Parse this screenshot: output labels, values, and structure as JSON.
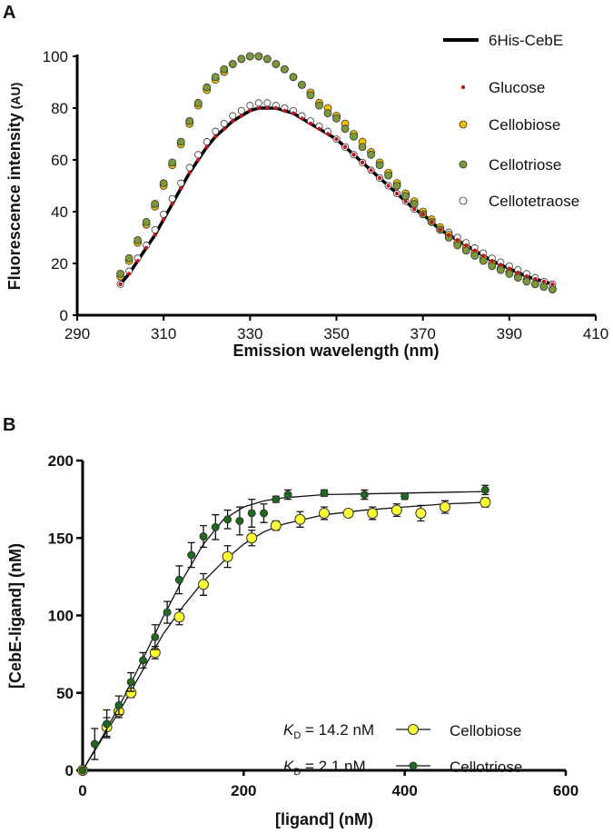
{
  "chart_data": [
    {
      "panel_label": "A",
      "type": "scatter",
      "xlabel": "Emission wavelength (nm)",
      "ylabel": "Fluorescence intensity",
      "ylabel_unit": "(AU)",
      "xlim": [
        290,
        410
      ],
      "ylim": [
        0,
        100
      ],
      "xticks": [
        "290",
        "310",
        "330",
        "350",
        "370",
        "390",
        "410"
      ],
      "yticks": [
        "0",
        "20",
        "40",
        "60",
        "80",
        "100"
      ],
      "grid": false,
      "legend_position": "top-right",
      "x": [
        300,
        302,
        304,
        306,
        308,
        310,
        312,
        314,
        316,
        318,
        320,
        322,
        324,
        326,
        328,
        330,
        332,
        334,
        336,
        338,
        340,
        342,
        344,
        346,
        348,
        350,
        352,
        354,
        356,
        358,
        360,
        362,
        364,
        366,
        368,
        370,
        372,
        374,
        376,
        378,
        380,
        382,
        384,
        386,
        388,
        390,
        392,
        394,
        396,
        398,
        400
      ],
      "series": [
        {
          "name": "6His-CebE",
          "style": "line",
          "color": "#000000",
          "values": [
            12,
            16,
            21,
            26,
            31,
            37,
            43,
            49,
            55,
            60,
            65,
            69,
            72,
            75,
            77,
            79,
            80,
            80,
            80,
            79,
            78,
            76,
            74,
            72,
            70,
            68,
            65,
            62,
            59,
            56,
            53,
            50,
            47,
            44,
            41,
            39,
            36,
            33,
            31,
            29,
            27,
            25,
            23,
            21,
            19.5,
            18,
            16.5,
            15,
            14,
            13,
            12
          ]
        },
        {
          "name": "Glucose",
          "style": "small-dot",
          "color": "#c0161b",
          "values": [
            12,
            16,
            21,
            26,
            31,
            37,
            43,
            49,
            55,
            60,
            65,
            69,
            72,
            75,
            77,
            79,
            80,
            80,
            80,
            79,
            78,
            76,
            74,
            72,
            70,
            68,
            65,
            62,
            59,
            56,
            53,
            50,
            47,
            44,
            41,
            39,
            36,
            33,
            31,
            29,
            27,
            25,
            23,
            21,
            19.5,
            18,
            16.5,
            15,
            14,
            13,
            12
          ]
        },
        {
          "name": "Cellobiose",
          "style": "dot",
          "color": "#f5c000",
          "values": [
            15,
            21,
            28,
            35,
            42,
            50,
            58,
            66,
            74,
            81,
            87,
            91,
            94,
            97,
            99,
            100,
            100,
            99,
            97,
            95,
            92,
            89,
            86,
            82,
            80,
            77,
            74,
            70,
            67,
            63,
            59,
            55,
            51,
            47,
            44,
            40,
            37,
            34,
            31,
            28,
            26,
            24,
            22,
            20,
            18,
            16.5,
            15,
            13.5,
            12,
            11,
            10
          ]
        },
        {
          "name": "Cellotriose",
          "style": "dot",
          "color": "#7a9a3a",
          "values": [
            16,
            22,
            29,
            36,
            43,
            51,
            59,
            67,
            75,
            82,
            88,
            92,
            95,
            97,
            99,
            100,
            100,
            99,
            97,
            95,
            92,
            89,
            85,
            81,
            78,
            76,
            72,
            69,
            65,
            62,
            58,
            54,
            50,
            46,
            43,
            39,
            36,
            33,
            30,
            27,
            25,
            23,
            21,
            19,
            17.5,
            16,
            14.5,
            13,
            12,
            11,
            10
          ]
        },
        {
          "name": "Cellotetraose",
          "style": "open-dot",
          "color": "#ffffff",
          "values": [
            12,
            17,
            22,
            27,
            33,
            39,
            45,
            51,
            57,
            62,
            67,
            71,
            74,
            77,
            79,
            81,
            82,
            82,
            81,
            80,
            79,
            77,
            75,
            73,
            71,
            68,
            65,
            62,
            59,
            56,
            53,
            50,
            47,
            44,
            41,
            39,
            36,
            34,
            32,
            30,
            28,
            26,
            24,
            22,
            20.5,
            19,
            17.5,
            16,
            14.5,
            13,
            12
          ]
        }
      ]
    },
    {
      "panel_label": "B",
      "type": "scatter",
      "xlabel": "[ligand] (nM)",
      "ylabel": "[CebE-ligand] (nM)",
      "xlim": [
        0,
        600
      ],
      "ylim": [
        0,
        200
      ],
      "xticks": [
        "0",
        "200",
        "400",
        "600"
      ],
      "yticks": [
        "0",
        "50",
        "100",
        "150",
        "200"
      ],
      "grid": false,
      "legend_position": "center-right",
      "series": [
        {
          "name": "Cellobiose",
          "kd_label": "K",
          "kd_sub": "D",
          "kd_value": " = 14.2 nM",
          "color": "#ffff33",
          "marker": "large",
          "points": [
            [
              0,
              0,
              0
            ],
            [
              30,
              28,
              6
            ],
            [
              45,
              38,
              4
            ],
            [
              60,
              50,
              3
            ],
            [
              90,
              76,
              4
            ],
            [
              120,
              99,
              5
            ],
            [
              150,
              120,
              7
            ],
            [
              180,
              138,
              7
            ],
            [
              210,
              150,
              5
            ],
            [
              240,
              158,
              3
            ],
            [
              270,
              162,
              5
            ],
            [
              300,
              166,
              4
            ],
            [
              330,
              166,
              2
            ],
            [
              360,
              166,
              4
            ],
            [
              390,
              168,
              4
            ],
            [
              420,
              166,
              5
            ],
            [
              450,
              170,
              4
            ],
            [
              500,
              173,
              3
            ]
          ],
          "fit": [
            [
              0,
              0
            ],
            [
              25,
              21
            ],
            [
              50,
              42
            ],
            [
              75,
              65
            ],
            [
              100,
              88
            ],
            [
              125,
              106
            ],
            [
              150,
              122
            ],
            [
              175,
              135
            ],
            [
              200,
              146
            ],
            [
              225,
              154
            ],
            [
              250,
              159
            ],
            [
              300,
              165
            ],
            [
              350,
              168
            ],
            [
              400,
              170
            ],
            [
              450,
              172
            ],
            [
              500,
              173
            ]
          ]
        },
        {
          "name": "Cellotriose",
          "kd_label": "K",
          "kd_sub": "D",
          "kd_value": " = 2.1 nM",
          "color": "#1e6b1e",
          "marker": "small",
          "points": [
            [
              0,
              0,
              0
            ],
            [
              15,
              17,
              10
            ],
            [
              30,
              30,
              9
            ],
            [
              45,
              42,
              6
            ],
            [
              60,
              57,
              6
            ],
            [
              75,
              71,
              5
            ],
            [
              90,
              86,
              8
            ],
            [
              105,
              102,
              7
            ],
            [
              120,
              123,
              9
            ],
            [
              135,
              139,
              8
            ],
            [
              150,
              151,
              7
            ],
            [
              165,
              157,
              8
            ],
            [
              180,
              162,
              6
            ],
            [
              195,
              161,
              9
            ],
            [
              210,
              166,
              9
            ],
            [
              225,
              166,
              6
            ],
            [
              240,
              175,
              2
            ],
            [
              255,
              178,
              3
            ],
            [
              300,
              179,
              2
            ],
            [
              350,
              178,
              3
            ],
            [
              400,
              177,
              2
            ],
            [
              500,
              181,
              3
            ]
          ],
          "fit": [
            [
              0,
              0
            ],
            [
              25,
              22
            ],
            [
              50,
              46
            ],
            [
              75,
              72
            ],
            [
              100,
              99
            ],
            [
              125,
              124
            ],
            [
              150,
              146
            ],
            [
              175,
              162
            ],
            [
              200,
              170
            ],
            [
              225,
              174
            ],
            [
              250,
              176
            ],
            [
              300,
              178
            ],
            [
              400,
              179
            ],
            [
              500,
              180
            ]
          ]
        }
      ]
    }
  ]
}
